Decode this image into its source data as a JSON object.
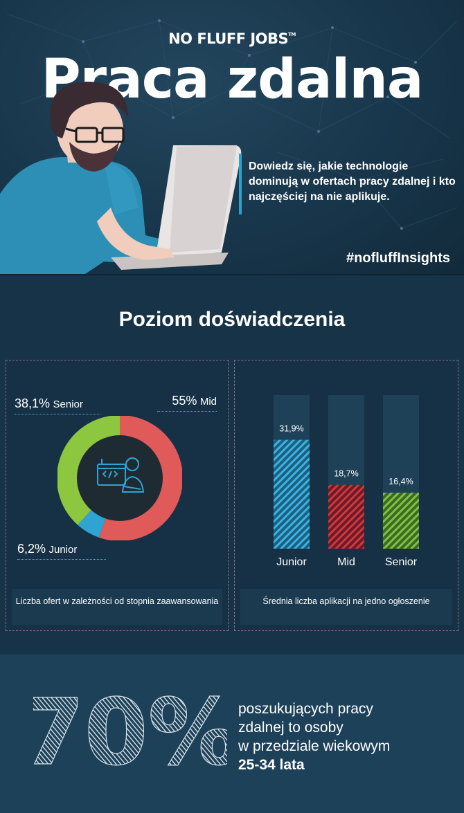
{
  "header": {
    "logo": "NO FLUFF JOBS",
    "logo_tm": "TM",
    "title": "Praca zdalna",
    "subtitle": "Dowiedz się, jakie technologie dominują w ofertach pracy zdalnej i kto najczęściej na nie aplikuje.",
    "hashtag": "#nofluffInsights"
  },
  "experience": {
    "title": "Poziom doświadczenia",
    "offers_chart": {
      "caption": "Liczba ofert w zależności od stopnia zaawansowania",
      "labels": [
        {
          "pct": "38,1%",
          "level": "Senior"
        },
        {
          "pct": "55%",
          "level": "Mid"
        },
        {
          "pct": "6,2%",
          "level": "Junior"
        }
      ]
    },
    "applications_chart": {
      "caption": "Średnia liczba aplikacji na jedno ogłoszenie"
    }
  },
  "chart_data": [
    {
      "type": "pie",
      "categories": [
        "Mid",
        "Junior",
        "Senior"
      ],
      "values": [
        55,
        6.2,
        38.1
      ],
      "colors": [
        "#e05a5a",
        "#2fa3d1",
        "#8dc63f"
      ],
      "title": ""
    },
    {
      "type": "bar",
      "categories": [
        "Junior",
        "Mid",
        "Senior"
      ],
      "values": [
        31.9,
        18.7,
        16.4
      ],
      "labels": [
        "31,9%",
        "18,7%",
        "16,4%"
      ],
      "colors": [
        "#2fa3d1",
        "#c8323e",
        "#6fb33a"
      ],
      "ylim": [
        0,
        45
      ]
    }
  ],
  "stat": {
    "number": "70%",
    "text_lines": [
      "poszukujących pracy",
      "zdalnej to osoby",
      "w przedziale wiekowym"
    ],
    "highlight": "25-34 lata"
  },
  "colors": {
    "background": "#173347",
    "band": "#1d4159",
    "accent": "#2ba3cf"
  }
}
